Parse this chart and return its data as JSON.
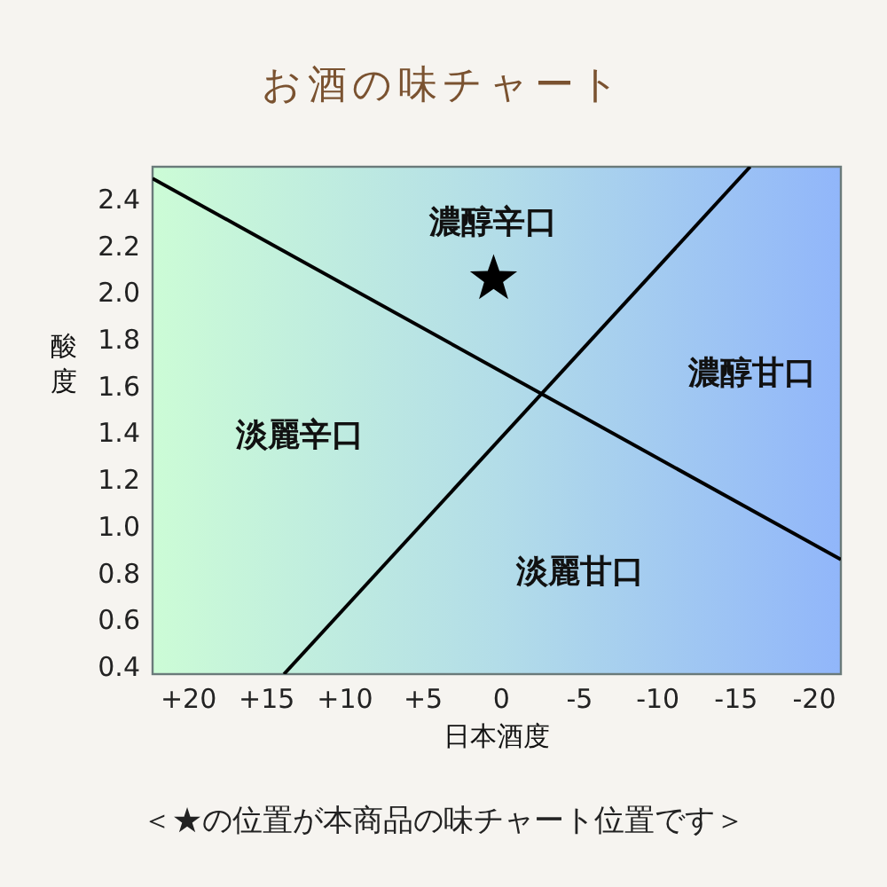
{
  "chart_data": {
    "type": "scatter",
    "title": "お酒の味チャート",
    "xlabel": "日本酒度",
    "ylabel": "酸度",
    "xlim": [
      22.3,
      -21.7
    ],
    "ylim": [
      0.37,
      2.54
    ],
    "xticks": [
      {
        "value": 20,
        "label": "+20"
      },
      {
        "value": 15,
        "label": "+15"
      },
      {
        "value": 10,
        "label": "+10"
      },
      {
        "value": 5,
        "label": "+5"
      },
      0,
      -5,
      -10,
      -15,
      -20
    ],
    "yticks": [
      0.4,
      0.6,
      0.8,
      {
        "value": 1,
        "label": "1.0"
      },
      1.2,
      1.4,
      1.6,
      1.8,
      {
        "value": 2,
        "label": "2.0"
      },
      2.2,
      2.4
    ],
    "series": [
      {
        "type": "line",
        "color": "#000000",
        "x": [
          22.3,
          -21.7
        ],
        "values": [
          2.49,
          0.86
        ]
      },
      {
        "type": "line",
        "color": "#000000",
        "x": [
          13.9,
          -15.9
        ],
        "values": [
          0.37,
          2.54
        ]
      },
      {
        "color": "#000000",
        "marker": "star",
        "x": [
          0.5
        ],
        "values": [
          2.06
        ]
      }
    ],
    "annotations": [
      "濃醇辛口",
      "淡麗辛口",
      "濃醇甘口",
      "淡麗甘口",
      "＜★の位置が本商品の味チャート位置です＞"
    ]
  }
}
